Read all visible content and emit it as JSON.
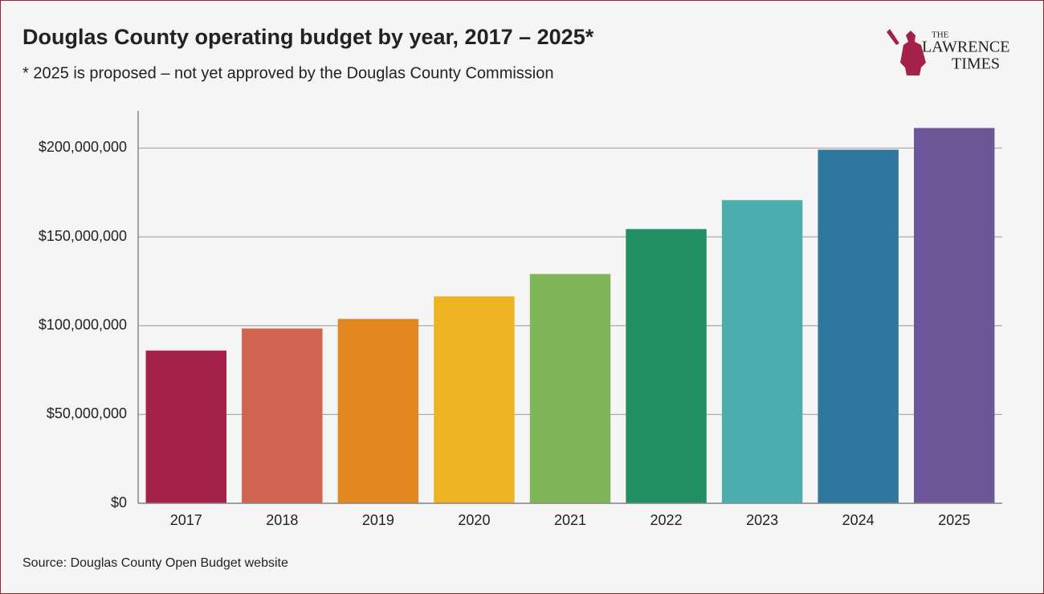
{
  "chart_data": {
    "type": "bar",
    "title": "Douglas County operating budget by year, 2017 – 2025*",
    "subtitle": "* 2025 is proposed – not yet approved by the Douglas County Commission",
    "source": "Source: Douglas County Open Budget website",
    "categories": [
      "2017",
      "2018",
      "2019",
      "2020",
      "2021",
      "2022",
      "2023",
      "2024",
      "2025"
    ],
    "values": [
      86000000,
      98400000,
      103800000,
      116500000,
      129100000,
      154400000,
      170700000,
      199100000,
      211300000
    ],
    "colors": [
      "#a4224a",
      "#d2634f",
      "#e2871f",
      "#eeb321",
      "#80b55a",
      "#228f63",
      "#4cadad",
      "#2f779f",
      "#6c5698"
    ],
    "ylim": [
      0,
      221000000
    ],
    "yticks": [
      {
        "value": 0,
        "label": "$0"
      },
      {
        "value": 50000000,
        "label": "$50,000,000"
      },
      {
        "value": 100000000,
        "label": "$100,000,000"
      },
      {
        "value": 150000000,
        "label": "$150,000,000"
      },
      {
        "value": 200000000,
        "label": "$200,000,000"
      }
    ],
    "grid": true
  },
  "logo": {
    "line1": "THE",
    "line2": "LAWRENCE",
    "line3": "TIMES"
  }
}
